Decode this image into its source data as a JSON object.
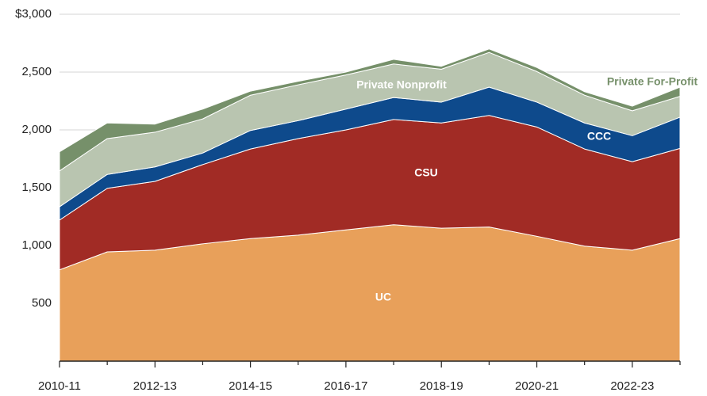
{
  "chart_data": {
    "type": "stacked_area",
    "categories": [
      "2010-11",
      null,
      "2012-13",
      null,
      "2014-15",
      null,
      "2016-17",
      null,
      "2018-19",
      null,
      "2020-21",
      null,
      "2022-23",
      null
    ],
    "series": [
      {
        "name": "UC",
        "color": "#e8a05a",
        "values": [
          790,
          945,
          960,
          1015,
          1060,
          1090,
          1135,
          1180,
          1150,
          1160,
          1080,
          995,
          960,
          1060
        ]
      },
      {
        "name": "CSU",
        "color": "#a12b25",
        "values": [
          430,
          550,
          595,
          685,
          775,
          835,
          865,
          910,
          910,
          965,
          945,
          840,
          765,
          780
        ]
      },
      {
        "name": "CCC",
        "color": "#0e4a8c",
        "values": [
          115,
          120,
          125,
          100,
          160,
          155,
          180,
          190,
          180,
          245,
          215,
          225,
          225,
          270
        ]
      },
      {
        "name": "Private Nonprofit",
        "color": "#b9c5b0",
        "values": [
          310,
          310,
          300,
          295,
          305,
          310,
          295,
          290,
          285,
          300,
          265,
          240,
          215,
          180
        ]
      },
      {
        "name": "Private For-Profit",
        "color": "#76906a",
        "values": [
          165,
          135,
          70,
          85,
          35,
          30,
          25,
          40,
          25,
          30,
          35,
          30,
          40,
          80
        ]
      }
    ],
    "ylim": [
      0,
      3000
    ],
    "yticks": [
      500,
      {
        "value": 1000,
        "label": "1,000"
      },
      {
        "value": 1500,
        "label": "1,500"
      },
      {
        "value": 2000,
        "label": "2,000"
      },
      {
        "value": 2500,
        "label": "2,500"
      },
      {
        "value": 3000,
        "label": "$3,000"
      }
    ],
    "grid": true
  }
}
